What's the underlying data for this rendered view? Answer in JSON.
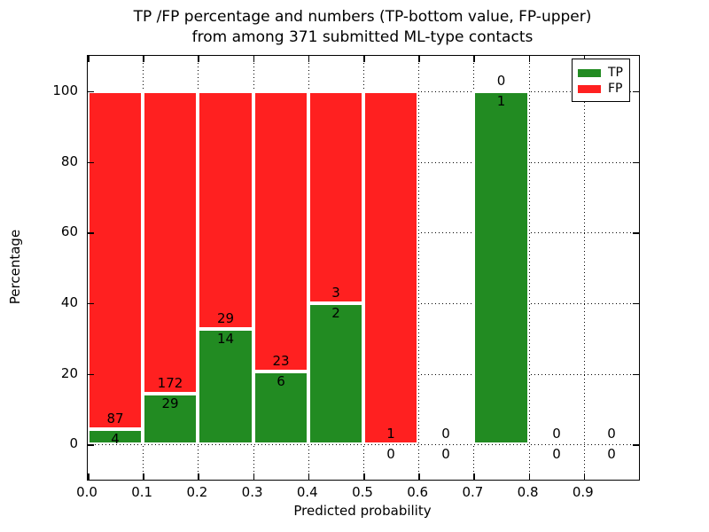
{
  "figure": {
    "title_line1": "TP /FP percentage and numbers (TP-bottom value, FP-upper)",
    "title_line2": "from among 371 submitted ML-type contacts"
  },
  "chart_data": {
    "type": "bar",
    "stacked": true,
    "title": "TP /FP percentage and numbers (TP-bottom value, FP-upper)\nfrom among 371 submitted ML-type contacts",
    "xlabel": "Predicted probability",
    "ylabel": "Percentage",
    "xlim": [
      0.0,
      1.0
    ],
    "ylim": [
      -10,
      110
    ],
    "x_tick_labels": [
      "0.0",
      "0.1",
      "0.2",
      "0.3",
      "0.4",
      "0.5",
      "0.6",
      "0.7",
      "0.8",
      "0.9"
    ],
    "x_tick_values": [
      0.0,
      0.1,
      0.2,
      0.3,
      0.4,
      0.5,
      0.6,
      0.7,
      0.8,
      0.9
    ],
    "y_tick_values": [
      0,
      20,
      40,
      60,
      80,
      100
    ],
    "x_grid_values": [
      0.1,
      0.2,
      0.3,
      0.4,
      0.5,
      0.6,
      0.7,
      0.8,
      0.9
    ],
    "grid_style": "dotted",
    "legend_position": "upper right",
    "legend": [
      {
        "label": "TP",
        "color": "#228B22"
      },
      {
        "label": "FP",
        "color": "#FF2020"
      }
    ],
    "bins": [
      {
        "x_start": 0.0,
        "x_end": 0.1,
        "tp_count": 4,
        "fp_count": 87,
        "tp_pct": 4.4,
        "fp_pct": 95.6
      },
      {
        "x_start": 0.1,
        "x_end": 0.2,
        "tp_count": 29,
        "fp_count": 172,
        "tp_pct": 14.43,
        "fp_pct": 85.57
      },
      {
        "x_start": 0.2,
        "x_end": 0.3,
        "tp_count": 14,
        "fp_count": 29,
        "tp_pct": 32.56,
        "fp_pct": 67.44
      },
      {
        "x_start": 0.3,
        "x_end": 0.4,
        "tp_count": 6,
        "fp_count": 23,
        "tp_pct": 20.69,
        "fp_pct": 79.31
      },
      {
        "x_start": 0.4,
        "x_end": 0.5,
        "tp_count": 2,
        "fp_count": 3,
        "tp_pct": 40.0,
        "fp_pct": 60.0
      },
      {
        "x_start": 0.5,
        "x_end": 0.6,
        "tp_count": 0,
        "fp_count": 1,
        "tp_pct": 0.0,
        "fp_pct": 100.0
      },
      {
        "x_start": 0.6,
        "x_end": 0.7,
        "tp_count": 0,
        "fp_count": 0,
        "tp_pct": 0,
        "fp_pct": 0
      },
      {
        "x_start": 0.7,
        "x_end": 0.8,
        "tp_count": 1,
        "fp_count": 0,
        "tp_pct": 100.0,
        "fp_pct": 0.0
      },
      {
        "x_start": 0.8,
        "x_end": 0.9,
        "tp_count": 0,
        "fp_count": 0,
        "tp_pct": 0,
        "fp_pct": 0
      },
      {
        "x_start": 0.9,
        "x_end": 1.0,
        "tp_count": 0,
        "fp_count": 0,
        "tp_pct": 0,
        "fp_pct": 0
      }
    ]
  }
}
